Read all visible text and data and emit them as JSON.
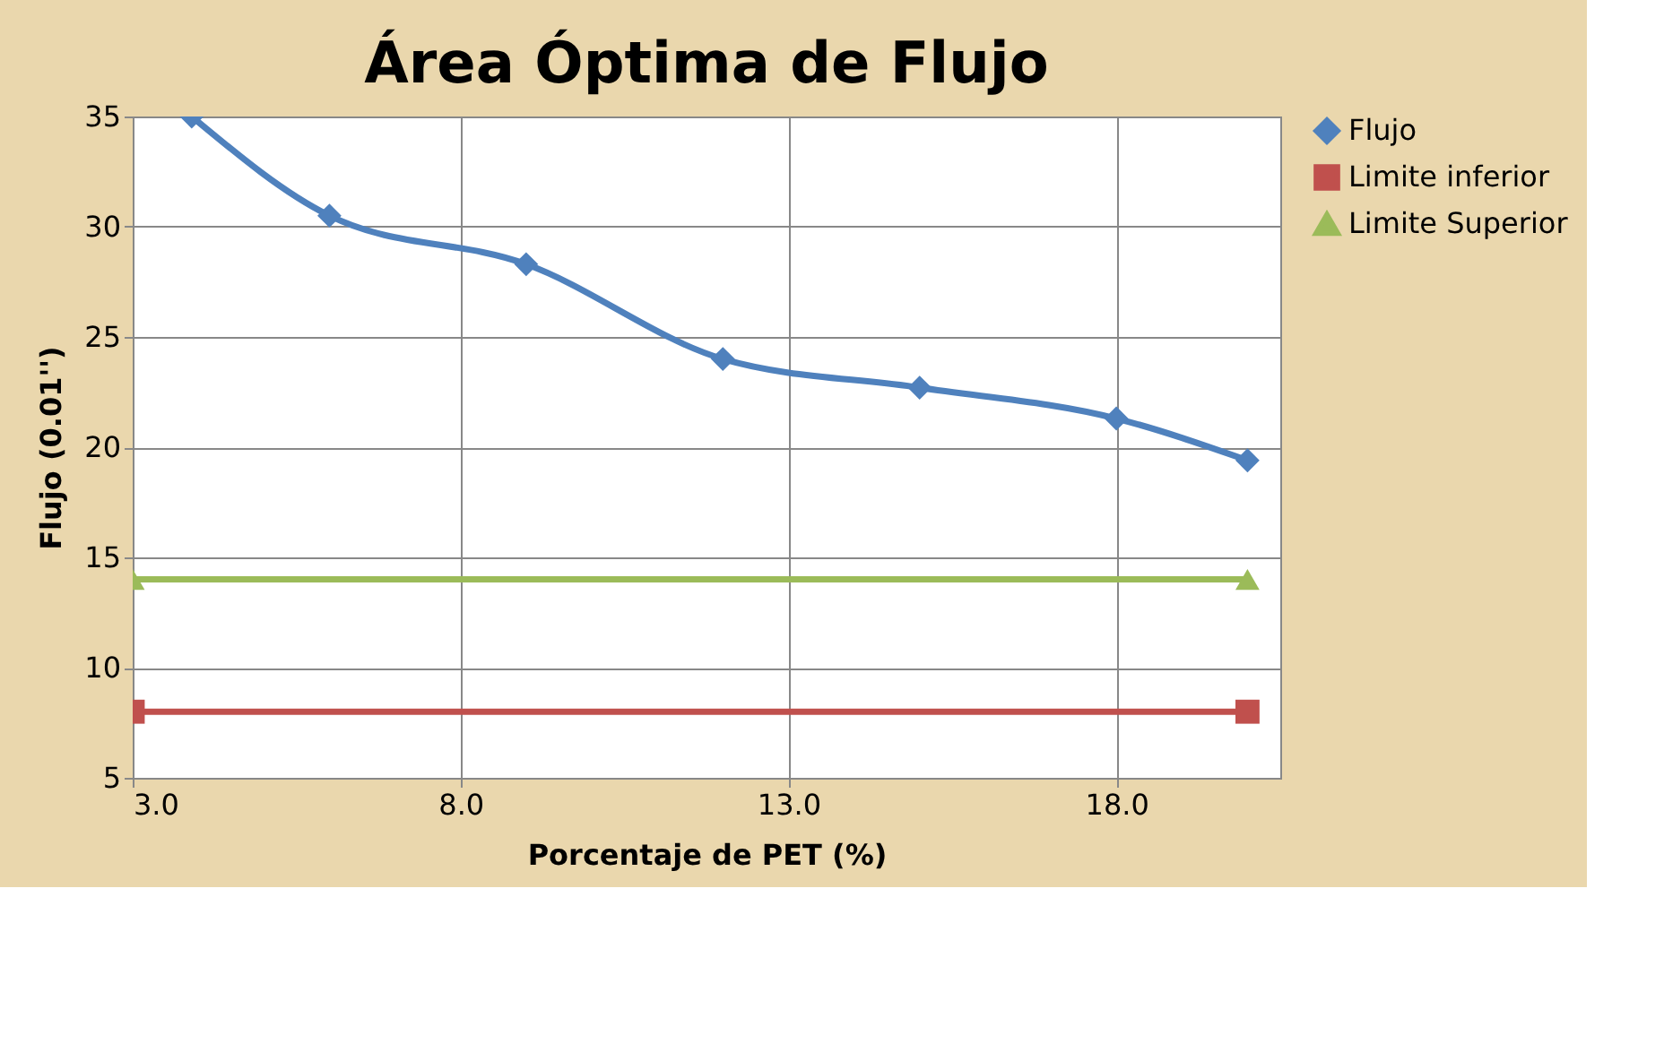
{
  "chart_data": {
    "type": "line",
    "title": "Área Óptima de Flujo",
    "xlabel": "Porcentaje de PET (%)",
    "ylabel": "Flujo (0.01'')",
    "xlim": [
      3,
      20.5
    ],
    "xticks": [
      {
        "value": 3,
        "label": "3.0"
      },
      {
        "value": 8,
        "label": "8.0"
      },
      {
        "value": 13,
        "label": "13.0"
      },
      {
        "value": 18,
        "label": "18.0"
      }
    ],
    "ylim": [
      5,
      35
    ],
    "yticks": [
      5,
      10,
      15,
      20,
      25,
      30,
      35
    ],
    "grid": true,
    "legend": "right",
    "line_style": "solid",
    "series": [
      {
        "name": "Flujo",
        "color": "#4f81bd",
        "marker": "diamond",
        "x": [
          3.9,
          6,
          9,
          12,
          15,
          18,
          20
        ],
        "values": [
          35,
          30.5,
          28.3,
          24.0,
          22.7,
          21.3,
          19.4
        ]
      },
      {
        "name": "Limite inferior",
        "color": "#c0504d",
        "marker": "square",
        "x": [
          3,
          20
        ],
        "values": [
          8,
          8
        ]
      },
      {
        "name": "Limite Superior",
        "color": "#9bbb59",
        "marker": "triangle",
        "x": [
          3,
          20
        ],
        "values": [
          14,
          14
        ]
      }
    ]
  }
}
